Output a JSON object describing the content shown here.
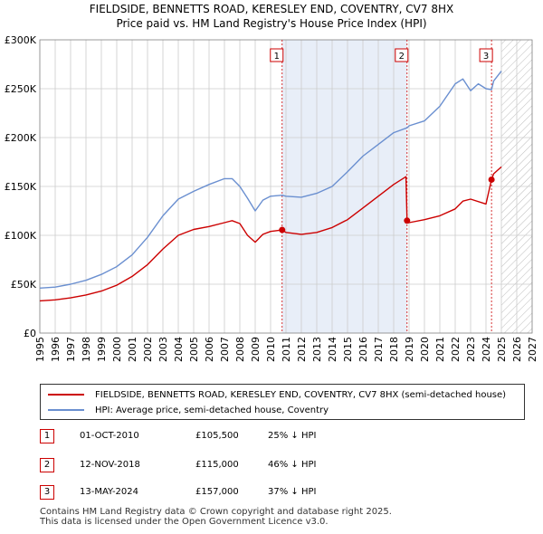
{
  "title_line1": "FIELDSIDE, BENNETTS ROAD, KERESLEY END, COVENTRY, CV7 8HX",
  "title_line2": "Price paid vs. HM Land Registry's House Price Index (HPI)",
  "colors": {
    "price_paid": "#cc0000",
    "hpi": "#6a8fd0",
    "shade": "#e8eef8",
    "grid": "#cccccc"
  },
  "chart_data": {
    "type": "line",
    "title": "Price paid vs. HM Land Registry's House Price Index (HPI)",
    "xlim": [
      1995,
      2027
    ],
    "ylim": [
      0,
      300000
    ],
    "y_ticks": [
      0,
      50000,
      100000,
      150000,
      200000,
      250000,
      300000
    ],
    "y_tick_labels": [
      "£0",
      "£50K",
      "£100K",
      "£150K",
      "£200K",
      "£250K",
      "£300K"
    ],
    "x_ticks": [
      1995,
      1996,
      1997,
      1998,
      1999,
      2000,
      2001,
      2002,
      2003,
      2004,
      2005,
      2006,
      2007,
      2008,
      2009,
      2010,
      2011,
      2012,
      2013,
      2014,
      2015,
      2016,
      2017,
      2018,
      2019,
      2020,
      2021,
      2022,
      2023,
      2024,
      2025,
      2026,
      2027
    ],
    "x_tick_labels": [
      "1995",
      "1996",
      "1997",
      "1998",
      "1999",
      "2000",
      "2001",
      "2002",
      "2003",
      "2004",
      "2005",
      "2006",
      "2007",
      "2008",
      "2009",
      "2010",
      "2011",
      "2012",
      "2013",
      "2014",
      "2015",
      "2016",
      "2017",
      "2018",
      "2019",
      "2020",
      "2021",
      "2022",
      "2023",
      "2024",
      "2025",
      "2026",
      "2027"
    ],
    "shaded_ranges": [
      [
        2010.75,
        2018.87
      ]
    ],
    "future_hatch_from": 2025.0,
    "series": [
      {
        "name": "FIELDSIDE, BENNETTS ROAD, KERESLEY END, COVENTRY, CV7 8HX (semi-detached house)",
        "key": "price_paid",
        "x": [
          1995.0,
          1996.0,
          1997.0,
          1998.0,
          1999.0,
          2000.0,
          2001.0,
          2002.0,
          2003.0,
          2004.0,
          2005.0,
          2006.0,
          2007.0,
          2007.5,
          2008.0,
          2008.5,
          2009.0,
          2009.5,
          2010.0,
          2010.75,
          2011.0,
          2012.0,
          2013.0,
          2014.0,
          2015.0,
          2016.0,
          2017.0,
          2018.0,
          2018.8,
          2018.87,
          2019.0,
          2020.0,
          2021.0,
          2022.0,
          2022.5,
          2023.0,
          2024.0,
          2024.36,
          2024.5,
          2025.0
        ],
        "y": [
          33000,
          34000,
          36000,
          39000,
          43000,
          49000,
          58000,
          70000,
          86000,
          100000,
          106000,
          109000,
          113000,
          115000,
          112000,
          100000,
          93000,
          101000,
          104000,
          105500,
          103000,
          101000,
          103000,
          108000,
          116000,
          128000,
          140000,
          152000,
          160000,
          115000,
          113000,
          116000,
          120000,
          127000,
          135000,
          137000,
          132000,
          157000,
          163000,
          170000
        ]
      },
      {
        "name": "HPI: Average price, semi-detached house, Coventry",
        "key": "hpi",
        "x": [
          1995.0,
          1996.0,
          1997.0,
          1998.0,
          1999.0,
          2000.0,
          2001.0,
          2002.0,
          2003.0,
          2004.0,
          2005.0,
          2006.0,
          2007.0,
          2007.5,
          2008.0,
          2008.5,
          2009.0,
          2009.5,
          2010.0,
          2010.75,
          2011.0,
          2012.0,
          2013.0,
          2014.0,
          2015.0,
          2016.0,
          2017.0,
          2018.0,
          2018.87,
          2019.0,
          2020.0,
          2021.0,
          2022.0,
          2022.5,
          2023.0,
          2023.5,
          2024.0,
          2024.36,
          2024.5,
          2025.0
        ],
        "y": [
          46000,
          47000,
          50000,
          54000,
          60000,
          68000,
          80000,
          98000,
          120000,
          137000,
          145000,
          152000,
          158000,
          158000,
          150000,
          138000,
          125000,
          136000,
          140000,
          141000,
          140000,
          139000,
          143000,
          150000,
          165000,
          181000,
          193000,
          205000,
          210000,
          212000,
          217000,
          232000,
          255000,
          260000,
          248000,
          255000,
          250000,
          249000,
          258000,
          268000
        ]
      }
    ],
    "sales": [
      {
        "label": "1",
        "x": 2010.75,
        "price": 105500
      },
      {
        "label": "2",
        "x": 2018.87,
        "price": 115000
      },
      {
        "label": "3",
        "x": 2024.36,
        "price": 157000
      }
    ]
  },
  "legend": {
    "price_paid": "FIELDSIDE, BENNETTS ROAD, KERESLEY END, COVENTRY, CV7 8HX (semi-detached house)",
    "hpi": "HPI: Average price, semi-detached house, Coventry"
  },
  "sales_table": [
    {
      "num": "1",
      "date": "01-OCT-2010",
      "price": "£105,500",
      "hpi": "25% ↓ HPI"
    },
    {
      "num": "2",
      "date": "12-NOV-2018",
      "price": "£115,000",
      "hpi": "46% ↓ HPI"
    },
    {
      "num": "3",
      "date": "13-MAY-2024",
      "price": "£157,000",
      "hpi": "37% ↓ HPI"
    }
  ],
  "footer_line1": "Contains HM Land Registry data © Crown copyright and database right 2025.",
  "footer_line2": "This data is licensed under the Open Government Licence v3.0."
}
